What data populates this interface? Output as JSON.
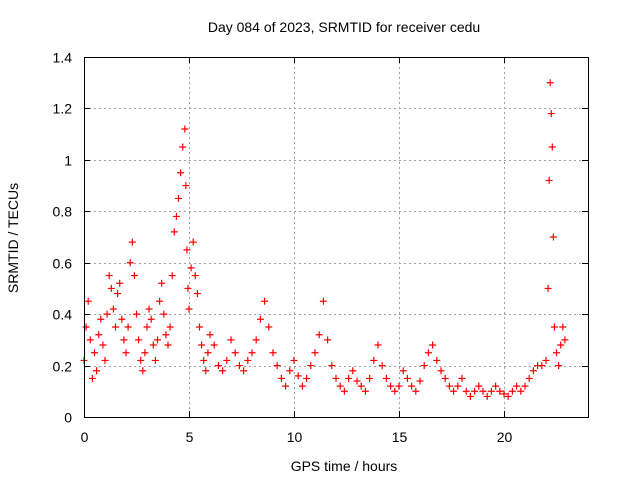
{
  "chart_data": {
    "type": "scatter",
    "title": "Day 084 of 2023, SRMTID for receiver cedu",
    "xlabel": "GPS time / hours",
    "ylabel": "SRMTID / TECUs",
    "xlim": [
      0,
      24
    ],
    "ylim": [
      0,
      1.4
    ],
    "xticks": [
      0,
      5,
      10,
      15,
      20
    ],
    "xtick_labels": [
      "0",
      "5",
      "10",
      "15",
      "20"
    ],
    "yticks": [
      0,
      0.2,
      0.4,
      0.6,
      0.8,
      1.0,
      1.2,
      1.4
    ],
    "ytick_labels": [
      "0",
      "0.2",
      "0.4",
      "0.6",
      "0.8",
      "1",
      "1.2",
      "1.4"
    ],
    "grid": true,
    "marker": "+",
    "color": "#ff0000",
    "series": [
      {
        "name": "SRMTID",
        "x": [
          0.0,
          0.1,
          0.2,
          0.3,
          0.4,
          0.5,
          0.6,
          0.7,
          0.8,
          0.9,
          1.0,
          1.1,
          1.2,
          1.3,
          1.4,
          1.5,
          1.6,
          1.7,
          1.8,
          1.9,
          2.0,
          2.1,
          2.2,
          2.3,
          2.4,
          2.5,
          2.6,
          2.7,
          2.8,
          2.9,
          3.0,
          3.1,
          3.2,
          3.3,
          3.4,
          3.5,
          3.6,
          3.7,
          3.8,
          3.9,
          4.0,
          4.1,
          4.2,
          4.3,
          4.4,
          4.5,
          4.6,
          4.7,
          4.8,
          4.85,
          4.9,
          4.95,
          5.0,
          5.1,
          5.2,
          5.3,
          5.4,
          5.5,
          5.6,
          5.7,
          5.8,
          5.9,
          6.0,
          6.2,
          6.4,
          6.6,
          6.8,
          7.0,
          7.2,
          7.4,
          7.6,
          7.8,
          8.0,
          8.2,
          8.4,
          8.6,
          8.8,
          9.0,
          9.2,
          9.4,
          9.6,
          9.8,
          10.0,
          10.2,
          10.4,
          10.6,
          10.8,
          11.0,
          11.2,
          11.4,
          11.6,
          11.8,
          12.0,
          12.2,
          12.4,
          12.6,
          12.8,
          13.0,
          13.2,
          13.4,
          13.6,
          13.8,
          14.0,
          14.2,
          14.4,
          14.6,
          14.8,
          15.0,
          15.2,
          15.4,
          15.6,
          15.8,
          16.0,
          16.2,
          16.4,
          16.6,
          16.8,
          17.0,
          17.2,
          17.4,
          17.6,
          17.8,
          18.0,
          18.2,
          18.4,
          18.6,
          18.8,
          19.0,
          19.2,
          19.4,
          19.6,
          19.8,
          20.0,
          20.2,
          20.4,
          20.6,
          20.8,
          21.0,
          21.2,
          21.4,
          21.6,
          21.8,
          22.0,
          22.1,
          22.15,
          22.2,
          22.25,
          22.3,
          22.35,
          22.4,
          22.5,
          22.6,
          22.7,
          22.8,
          22.9
        ],
        "y": [
          0.22,
          0.35,
          0.45,
          0.3,
          0.15,
          0.25,
          0.18,
          0.32,
          0.38,
          0.28,
          0.22,
          0.4,
          0.55,
          0.5,
          0.42,
          0.35,
          0.48,
          0.52,
          0.38,
          0.3,
          0.25,
          0.35,
          0.6,
          0.68,
          0.55,
          0.4,
          0.3,
          0.22,
          0.18,
          0.25,
          0.35,
          0.42,
          0.38,
          0.28,
          0.22,
          0.3,
          0.45,
          0.52,
          0.4,
          0.32,
          0.28,
          0.35,
          0.55,
          0.72,
          0.78,
          0.85,
          0.95,
          1.05,
          1.12,
          0.9,
          0.65,
          0.5,
          0.42,
          0.58,
          0.68,
          0.55,
          0.48,
          0.35,
          0.28,
          0.22,
          0.18,
          0.25,
          0.32,
          0.28,
          0.2,
          0.18,
          0.22,
          0.3,
          0.25,
          0.2,
          0.18,
          0.22,
          0.25,
          0.3,
          0.38,
          0.45,
          0.35,
          0.25,
          0.2,
          0.15,
          0.12,
          0.18,
          0.22,
          0.16,
          0.12,
          0.15,
          0.2,
          0.25,
          0.32,
          0.45,
          0.3,
          0.2,
          0.15,
          0.12,
          0.1,
          0.15,
          0.18,
          0.14,
          0.12,
          0.1,
          0.15,
          0.22,
          0.28,
          0.2,
          0.15,
          0.12,
          0.1,
          0.12,
          0.18,
          0.15,
          0.12,
          0.1,
          0.14,
          0.2,
          0.25,
          0.28,
          0.22,
          0.18,
          0.15,
          0.12,
          0.1,
          0.12,
          0.15,
          0.1,
          0.08,
          0.1,
          0.12,
          0.1,
          0.08,
          0.1,
          0.12,
          0.1,
          0.09,
          0.08,
          0.1,
          0.12,
          0.1,
          0.12,
          0.15,
          0.18,
          0.2,
          0.2,
          0.22,
          0.5,
          0.92,
          1.3,
          1.18,
          1.05,
          0.7,
          0.35,
          0.25,
          0.2,
          0.28,
          0.35,
          0.3
        ]
      }
    ]
  }
}
